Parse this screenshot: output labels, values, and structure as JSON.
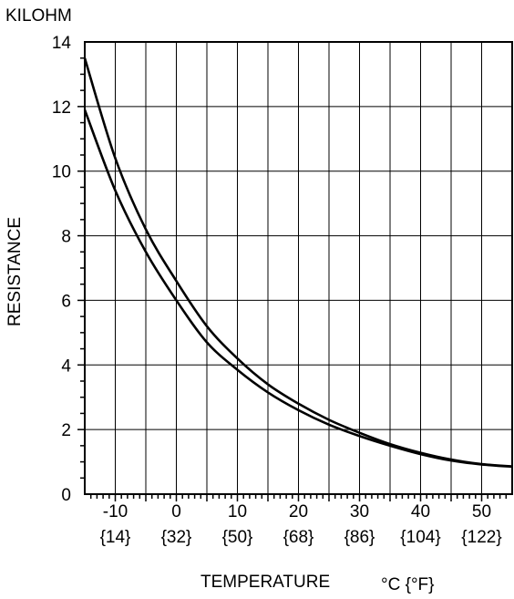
{
  "chart_data": {
    "type": "line",
    "units_label": "KILOHM",
    "ylabel": "RESISTANCE",
    "xlabel": "TEMPERATURE",
    "xlabel_units": "°C {°F}",
    "xlim": [
      -15,
      55
    ],
    "ylim": [
      0,
      14
    ],
    "grid": true,
    "x_ticks": [
      {
        "c": "-10",
        "f": "{14}"
      },
      {
        "c": "0",
        "f": "{32}"
      },
      {
        "c": "10",
        "f": "{50}"
      },
      {
        "c": "20",
        "f": "{68}"
      },
      {
        "c": "30",
        "f": "{86}"
      },
      {
        "c": "40",
        "f": "{104}"
      },
      {
        "c": "50",
        "f": "{122}"
      }
    ],
    "y_ticks": [
      "0",
      "2",
      "4",
      "6",
      "8",
      "10",
      "12",
      "14"
    ],
    "series": [
      {
        "x": [
          -15,
          -10,
          -5,
          0,
          5,
          10,
          15,
          20,
          25,
          30,
          35,
          40,
          45,
          50,
          55
        ],
        "y": [
          13.5,
          10.4,
          8.2,
          6.6,
          5.2,
          4.2,
          3.4,
          2.8,
          2.3,
          1.9,
          1.55,
          1.28,
          1.07,
          0.93,
          0.86
        ]
      },
      {
        "x": [
          -15,
          -10,
          -5,
          0,
          5,
          10,
          15,
          20,
          25,
          30,
          35,
          40,
          45,
          50,
          55
        ],
        "y": [
          11.9,
          9.4,
          7.5,
          6.0,
          4.7,
          3.85,
          3.15,
          2.6,
          2.15,
          1.8,
          1.5,
          1.24,
          1.04,
          0.92,
          0.85
        ]
      }
    ]
  }
}
